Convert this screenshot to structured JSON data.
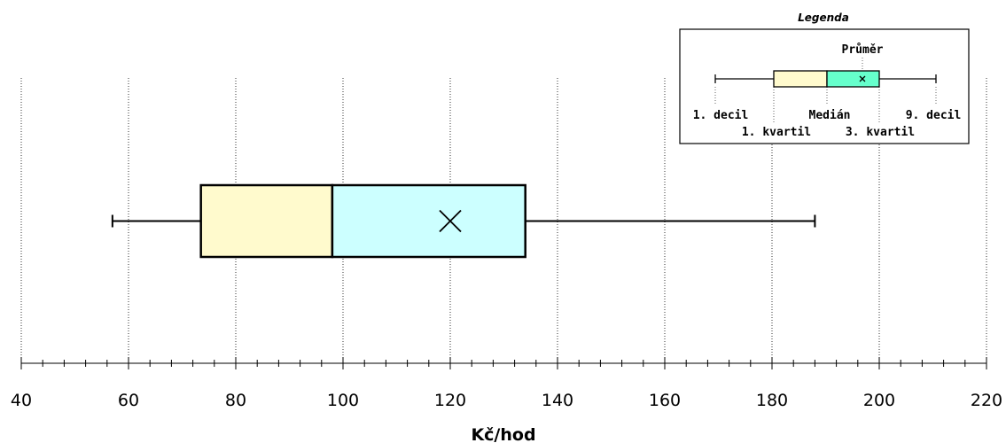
{
  "chart_data": {
    "type": "boxplot",
    "xlabel": "Kč/hod",
    "xlim": [
      40,
      220
    ],
    "x_ticks": [
      40,
      60,
      80,
      100,
      120,
      140,
      160,
      180,
      200,
      220
    ],
    "minor_tick_step": 4,
    "grid": "vertical dotted",
    "box": {
      "decile_1": 57,
      "quartile_1": 73.5,
      "median": 98,
      "mean": 120,
      "quartile_3": 134,
      "decile_9": 188
    },
    "colors": {
      "lower_box": "#fffacd",
      "upper_box": "#ccffff",
      "legend_upper_box": "#66ffcc",
      "stroke": "#000000"
    },
    "legend": {
      "placement": "top-right",
      "title": "Legenda",
      "labels": {
        "mean": "Průměr",
        "decile_1": "1. decil",
        "quartile_1": "1. kvartil",
        "median": "Medián",
        "quartile_3": "3. kvartil",
        "decile_9": "9. decil"
      }
    }
  }
}
